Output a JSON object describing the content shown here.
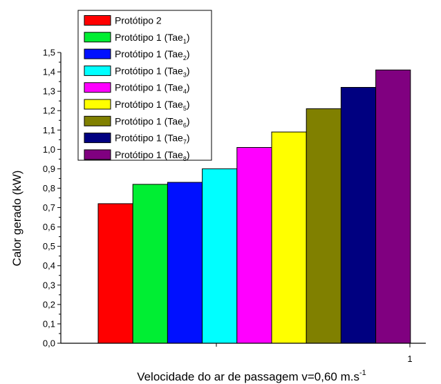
{
  "chart_data": {
    "type": "bar",
    "title": "",
    "xlabel": "Velocidade do ar de passagem v=0,60 m.s",
    "xlabel_sup": "-1",
    "ylabel": "Calor gerado (kW)",
    "x_tick_label": "1",
    "ylim": [
      0,
      1.5
    ],
    "y_tick_step": 0.1,
    "y_tick_labels": [
      "0,0",
      "0,1",
      "0,2",
      "0,3",
      "0,4",
      "0,5",
      "0,6",
      "0,7",
      "0,8",
      "0,9",
      "1,0",
      "1,1",
      "1,2",
      "1,3",
      "1,4",
      "1,5"
    ],
    "legend_position": "top-left",
    "grid": false,
    "series": [
      {
        "name": "Protótipo 2",
        "name_sub": "",
        "value": 0.72,
        "color": "#ff0000"
      },
      {
        "name": "Protótipo 1 (Tae",
        "name_sub": "1",
        "name_end": ")",
        "value": 0.82,
        "color": "#00ee33"
      },
      {
        "name": "Protótipo 1 (Tae",
        "name_sub": "2",
        "name_end": ")",
        "value": 0.83,
        "color": "#0010ff"
      },
      {
        "name": "Protótipo 1 (Tae",
        "name_sub": "3",
        "name_end": ")",
        "value": 0.9,
        "color": "#00ffff"
      },
      {
        "name": "Protótipo 1 (Tae",
        "name_sub": "4",
        "name_end": ")",
        "value": 1.01,
        "color": "#ff00ff"
      },
      {
        "name": "Protótipo 1 (Tae",
        "name_sub": "5",
        "name_end": ")",
        "value": 1.09,
        "color": "#ffff00"
      },
      {
        "name": "Protótipo 1 (Tae",
        "name_sub": "6",
        "name_end": ")",
        "value": 1.21,
        "color": "#808000"
      },
      {
        "name": "Protótipo 1 (Tae",
        "name_sub": "7",
        "name_end": ")",
        "value": 1.32,
        "color": "#000080"
      },
      {
        "name": "Protótipo 1 (Tae",
        "name_sub": "8",
        "name_end": ")",
        "value": 1.41,
        "color": "#800080"
      }
    ]
  }
}
